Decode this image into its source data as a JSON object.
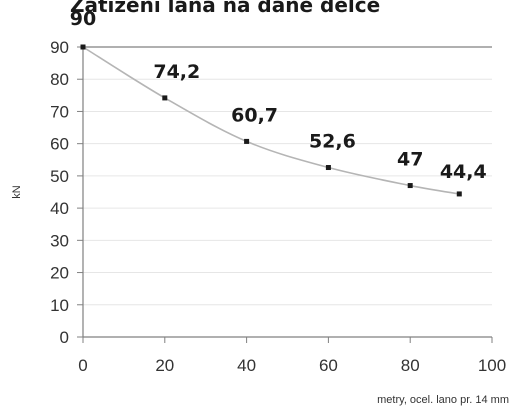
{
  "chart_data": {
    "type": "line",
    "title": "Zatížení lana na dané délce",
    "xlabel": "metry, ocel. lano pr. 14 mm",
    "ylabel": "kN",
    "x": [
      0,
      20,
      40,
      60,
      80,
      92
    ],
    "series": [
      {
        "values": [
          90,
          74.2,
          60.7,
          52.6,
          47,
          44.4
        ],
        "labels": [
          "90",
          "74,2",
          "60,7",
          "52,6",
          "47",
          "44,4"
        ]
      }
    ],
    "xlim": [
      0,
      100
    ],
    "ylim": [
      0,
      90
    ],
    "xticks": [
      0,
      20,
      40,
      60,
      80,
      100
    ],
    "yticks": [
      0,
      10,
      20,
      30,
      40,
      50,
      60,
      70,
      80,
      90
    ],
    "xtick_labels": [
      "0",
      "20",
      "40",
      "60",
      "80",
      "100"
    ],
    "ytick_labels": [
      "0",
      "10",
      "20",
      "30",
      "40",
      "50",
      "60",
      "70",
      "80",
      "90"
    ],
    "grid": true,
    "legend": "none",
    "colors": {
      "line": "#b5b5b5",
      "marker": "#1a1a1a",
      "axis": "#808080",
      "grid": "#e6e6e6"
    }
  }
}
